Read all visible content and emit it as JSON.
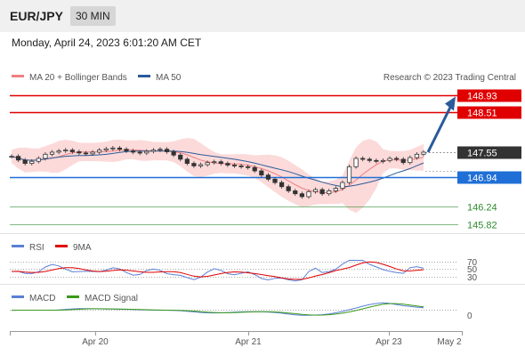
{
  "header": {
    "pair": "EUR/JPY",
    "timeframe": "30 MIN"
  },
  "datetime": "Monday, April 24, 2023 6:01:20 AM CET",
  "legend": {
    "bb": "MA 20 + Bollinger Bands",
    "ma50": "MA 50",
    "credit": "Research © 2023 Trading Central",
    "bb_color": "#f08080",
    "ma50_color": "#2a5b9a"
  },
  "levels": [
    {
      "value": "148.93",
      "color": "#e00000",
      "kind": "resistance"
    },
    {
      "value": "148.51",
      "color": "#e00000",
      "kind": "resistance"
    },
    {
      "value": "147.55",
      "color": "#333333",
      "kind": "last"
    },
    {
      "value": "146.94",
      "color": "#1f6fd6",
      "kind": "pivot"
    },
    {
      "value": "146.24",
      "color": "#2e8b2e",
      "kind": "support"
    },
    {
      "value": "145.82",
      "color": "#2e8b2e",
      "kind": "support"
    }
  ],
  "rsi": {
    "legend": [
      "RSI",
      "9MA"
    ],
    "colors": [
      "#5b7fd6",
      "#e00000"
    ],
    "levels": [
      "70",
      "50",
      "30"
    ]
  },
  "macd": {
    "legend": [
      "MACD",
      "MACD Signal"
    ],
    "colors": [
      "#5b7fd6",
      "#3a9a1a"
    ],
    "zero": "0"
  },
  "xaxis": [
    "Apr 20",
    "Apr 21",
    "Apr 23",
    "May 2"
  ],
  "chart_data": {
    "type": "line",
    "title": "EUR/JPY 30 MIN",
    "price_ylim": [
      145.7,
      149.0
    ],
    "close_series": [
      {
        "name": "EUR/JPY",
        "values": [
          147.45,
          147.36,
          147.28,
          147.33,
          147.4,
          147.5,
          147.55,
          147.58,
          147.6,
          147.56,
          147.53,
          147.51,
          147.55,
          147.6,
          147.63,
          147.65,
          147.62,
          147.58,
          147.55,
          147.53,
          147.57,
          147.6,
          147.62,
          147.56,
          147.48,
          147.38,
          147.28,
          147.22,
          147.25,
          147.3,
          147.32,
          147.28,
          147.24,
          147.22,
          147.2,
          147.18,
          147.1,
          147.0,
          146.9,
          146.82,
          146.72,
          146.62,
          146.55,
          146.48,
          146.6,
          146.65,
          146.55,
          146.62,
          146.68,
          146.82,
          147.2,
          147.4,
          147.38,
          147.35,
          147.33,
          147.35,
          147.4,
          147.38,
          147.3,
          147.42,
          147.5,
          147.55
        ]
      }
    ],
    "annotations": [
      "148.93",
      "148.51",
      "147.55",
      "146.94",
      "146.24",
      "145.82"
    ],
    "x_ticks": [
      "Apr 20",
      "Apr 21",
      "Apr 23",
      "May 2"
    ]
  }
}
